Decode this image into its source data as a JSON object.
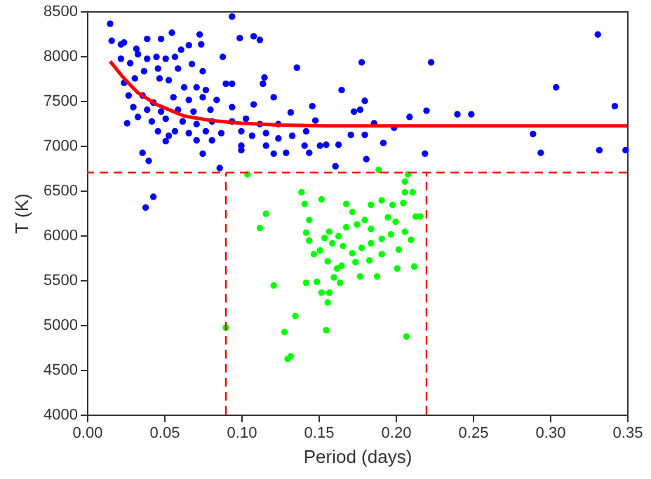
{
  "chart_data": {
    "type": "scatter",
    "xlabel": "Period (days)",
    "ylabel": "T (K)",
    "xlim": [
      0,
      0.35
    ],
    "ylim": [
      4000,
      8500
    ],
    "xticks": [
      {
        "value": 0,
        "label": "0.00"
      },
      {
        "value": 0.05,
        "label": "0.05"
      },
      {
        "value": 0.1,
        "label": "0.10"
      },
      {
        "value": 0.15,
        "label": "0.15"
      },
      {
        "value": 0.2,
        "label": "0.20"
      },
      {
        "value": 0.25,
        "label": "0.25"
      },
      {
        "value": 0.3,
        "label": "0.30"
      },
      {
        "value": 0.35,
        "label": "0.35"
      }
    ],
    "yticks": [
      4000,
      4500,
      5000,
      5500,
      6000,
      6500,
      7000,
      7500,
      8000,
      8500
    ],
    "grid": false,
    "marker": "circle",
    "series": [
      {
        "color": "#0000ff",
        "x": [
          0.015,
          0.016,
          0.022,
          0.024,
          0.032,
          0.039,
          0.048,
          0.055,
          0.061,
          0.066,
          0.073,
          0.074,
          0.088,
          0.094,
          0.099,
          0.108,
          0.112,
          0.136,
          0.178,
          0.223,
          0.331,
          0.304,
          0.342,
          0.289,
          0.294,
          0.332,
          0.349,
          0.24,
          0.249,
          0.219,
          0.22,
          0.209,
          0.199,
          0.192,
          0.181,
          0.161,
          0.165,
          0.173,
          0.177,
          0.18,
          0.186,
          0.18,
          0.171,
          0.163,
          0.155,
          0.148,
          0.146,
          0.144,
          0.132,
          0.129,
          0.121,
          0.115,
          0.114,
          0.121,
          0.108,
          0.1,
          0.094,
          0.09,
          0.086,
          0.075,
          0.04,
          0.036,
          0.038,
          0.043,
          0.026,
          0.051,
          0.022,
          0.028,
          0.033,
          0.039,
          0.045,
          0.051,
          0.057,
          0.037,
          0.046,
          0.059,
          0.068,
          0.075,
          0.024,
          0.031,
          0.047,
          0.053,
          0.063,
          0.071,
          0.077,
          0.027,
          0.036,
          0.043,
          0.056,
          0.066,
          0.075,
          0.084,
          0.03,
          0.039,
          0.048,
          0.059,
          0.069,
          0.08,
          0.094,
          0.033,
          0.042,
          0.051,
          0.062,
          0.071,
          0.081,
          0.094,
          0.103,
          0.112,
          0.046,
          0.057,
          0.066,
          0.077,
          0.087,
          0.1,
          0.107,
          0.116,
          0.124,
          0.133,
          0.141,
          0.124,
          0.053,
          0.071,
          0.081,
          0.1,
          0.116,
          0.151,
          0.142
        ],
        "values": [
          8360,
          8170,
          8130,
          8150,
          8080,
          8190,
          8190,
          8260,
          8070,
          8120,
          8240,
          8130,
          7990,
          8440,
          8200,
          8220,
          8180,
          7870,
          7930,
          7930,
          8240,
          7650,
          7440,
          7130,
          6920,
          6950,
          6950,
          7350,
          7350,
          6910,
          7390,
          7320,
          7200,
          7030,
          6850,
          6770,
          7620,
          7380,
          7400,
          7500,
          7250,
          7120,
          7120,
          7010,
          7010,
          7280,
          7440,
          6920,
          7370,
          6920,
          6910,
          7760,
          7690,
          7540,
          7460,
          6950,
          7690,
          7690,
          6750,
          6910,
          6830,
          6920,
          6310,
          6430,
          7250,
          7050,
          7970,
          7920,
          8020,
          7970,
          7990,
          7970,
          7990,
          7830,
          7860,
          7860,
          7910,
          7830,
          7700,
          7750,
          7750,
          7730,
          7650,
          7650,
          7620,
          7560,
          7560,
          7480,
          7540,
          7510,
          7540,
          7510,
          7430,
          7400,
          7380,
          7400,
          7380,
          7400,
          7430,
          7320,
          7270,
          7300,
          7270,
          7240,
          7270,
          7270,
          7300,
          7240,
          7160,
          7160,
          7140,
          7160,
          7140,
          7160,
          7110,
          7140,
          7080,
          7110,
          7000,
          7240,
          7110,
          7060,
          7060,
          7000,
          7000,
          7000,
          7160
        ]
      },
      {
        "color": "#00ff00",
        "x": [
          0.104,
          0.189,
          0.208,
          0.206,
          0.139,
          0.206,
          0.211,
          0.141,
          0.152,
          0.168,
          0.184,
          0.191,
          0.198,
          0.205,
          0.116,
          0.213,
          0.216,
          0.112,
          0.144,
          0.142,
          0.172,
          0.18,
          0.195,
          0.2,
          0.154,
          0.157,
          0.163,
          0.168,
          0.175,
          0.184,
          0.191,
          0.197,
          0.206,
          0.21,
          0.144,
          0.151,
          0.159,
          0.166,
          0.172,
          0.178,
          0.184,
          0.191,
          0.202,
          0.147,
          0.156,
          0.165,
          0.174,
          0.183,
          0.162,
          0.201,
          0.212,
          0.16,
          0.164,
          0.177,
          0.188,
          0.142,
          0.149,
          0.121,
          0.152,
          0.157,
          0.156,
          0.135,
          0.09,
          0.155,
          0.128,
          0.207,
          0.132,
          0.13
        ],
        "values": [
          6680,
          6730,
          6680,
          6600,
          6480,
          6480,
          6480,
          6350,
          6400,
          6350,
          6340,
          6390,
          6340,
          6360,
          6240,
          6210,
          6210,
          6080,
          6170,
          6030,
          6260,
          6170,
          6200,
          6150,
          5970,
          6040,
          5990,
          6090,
          6120,
          6070,
          5960,
          6010,
          6040,
          5950,
          5940,
          5830,
          5910,
          5880,
          5800,
          5860,
          5910,
          5790,
          5840,
          5790,
          5710,
          5660,
          5700,
          5720,
          5630,
          5630,
          5650,
          5530,
          5470,
          5540,
          5540,
          5470,
          5480,
          5440,
          5360,
          5360,
          5250,
          5100,
          4970,
          4940,
          4920,
          4870,
          4650,
          4620
        ]
      },
      {
        "type": "line",
        "marker": "none",
        "color": "#ff0000",
        "x": [
          0.015,
          0.024,
          0.033,
          0.045,
          0.063,
          0.081,
          0.1,
          0.124,
          0.154,
          0.2,
          0.35
        ],
        "values": [
          7940,
          7750,
          7590,
          7460,
          7330,
          7280,
          7250,
          7230,
          7220,
          7220,
          7220
        ]
      }
    ],
    "ref_lines": [
      {
        "axis": "y",
        "value": 6700,
        "color": "#ff0000",
        "line_style": "dashed"
      },
      {
        "axis": "x",
        "value": 0.09,
        "color": "#ff0000",
        "line_style": "dashed"
      },
      {
        "axis": "x",
        "value": 0.22,
        "color": "#ff0000",
        "line_style": "dashed"
      }
    ]
  }
}
